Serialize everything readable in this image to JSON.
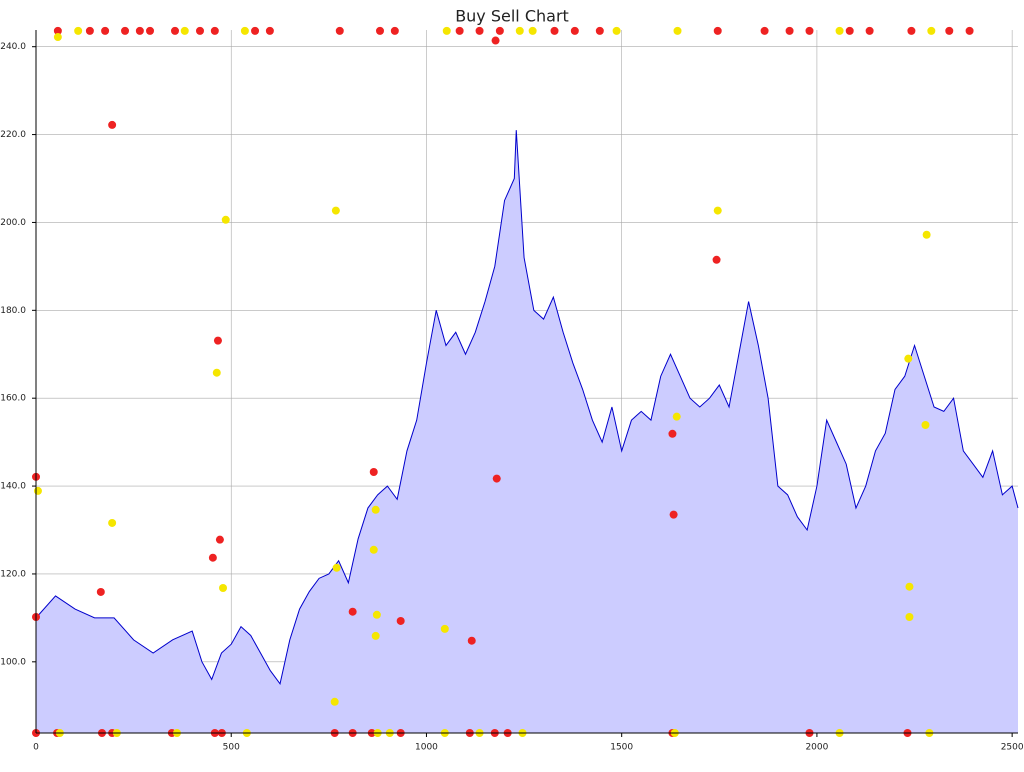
{
  "chart_data": {
    "type": "area",
    "title": "Buy Sell Chart",
    "xlim": [
      0,
      2515
    ],
    "ylim": [
      83.8,
      243.8
    ],
    "grid": true,
    "xticks": [
      0,
      500,
      1000,
      1500,
      2000,
      2500
    ],
    "yticks": [
      {
        "value": 100,
        "label": "100.0"
      },
      {
        "value": 120,
        "label": "120.0"
      },
      {
        "value": 140,
        "label": "140.0"
      },
      {
        "value": 160,
        "label": "160.0"
      },
      {
        "value": 180,
        "label": "180.0"
      },
      {
        "value": 200,
        "label": "200.0"
      },
      {
        "value": 220,
        "label": "220.0"
      },
      {
        "value": 240,
        "label": "240.0"
      }
    ],
    "series": [
      {
        "type": "area",
        "color": "#0000cc",
        "fill": "#ccccff",
        "x": [
          0,
          50,
          100,
          150,
          200,
          250,
          300,
          350,
          400,
          425,
          450,
          475,
          500,
          525,
          550,
          575,
          600,
          625,
          650,
          675,
          700,
          725,
          750,
          775,
          800,
          825,
          850,
          875,
          900,
          925,
          950,
          975,
          1000,
          1025,
          1050,
          1075,
          1100,
          1125,
          1150,
          1175,
          1200,
          1225,
          1230,
          1250,
          1275,
          1300,
          1325,
          1350,
          1375,
          1400,
          1425,
          1450,
          1475,
          1500,
          1525,
          1550,
          1575,
          1600,
          1625,
          1650,
          1675,
          1700,
          1725,
          1750,
          1775,
          1800,
          1825,
          1850,
          1875,
          1900,
          1925,
          1950,
          1975,
          2000,
          2025,
          2050,
          2075,
          2100,
          2125,
          2150,
          2175,
          2200,
          2225,
          2250,
          2275,
          2300,
          2325,
          2350,
          2375,
          2400,
          2425,
          2450,
          2475,
          2500,
          2515
        ],
        "values": [
          110,
          115,
          112,
          110,
          110,
          105,
          102,
          105,
          107,
          100,
          96,
          102,
          104,
          108,
          106,
          102,
          98,
          95,
          105,
          112,
          116,
          119,
          120,
          123,
          118,
          128,
          135,
          138,
          140,
          137,
          148,
          155,
          168,
          180,
          172,
          175,
          170,
          175,
          182,
          190,
          205,
          210,
          221,
          192,
          180,
          178,
          183,
          175,
          168,
          162,
          155,
          150,
          158,
          148,
          155,
          157,
          155,
          165,
          170,
          165,
          160,
          158,
          160,
          163,
          158,
          170,
          182,
          172,
          160,
          140,
          138,
          133,
          130,
          140,
          155,
          150,
          145,
          135,
          140,
          148,
          152,
          162,
          165,
          172,
          165,
          158,
          157,
          160,
          148,
          145,
          142,
          148,
          138,
          140,
          135
        ]
      },
      {
        "type": "scatter",
        "color": "#ee2222",
        "x": [
          0,
          0,
          195,
          166,
          466,
          471,
          453,
          865,
          811,
          934,
          1116,
          1180,
          1177,
          1630,
          1633,
          1743,
          56,
          138,
          177,
          228,
          266,
          292,
          356,
          420,
          458,
          561,
          599,
          778,
          881,
          919,
          1085,
          1136,
          1188,
          1328,
          1380,
          1444,
          1746,
          1866,
          1930,
          1981,
          2084,
          2135,
          2242,
          2339,
          2391,
          0,
          54,
          169,
          195,
          348,
          458,
          476,
          765,
          811,
          860,
          934,
          1111,
          1175,
          1208,
          1630,
          1981,
          2232
        ],
        "values": [
          142.1,
          110.2,
          222.2,
          115.9,
          173.1,
          127.8,
          123.7,
          143.2,
          111.4,
          109.3,
          104.8,
          141.7,
          241.4,
          151.9,
          133.5,
          191.5,
          243.6,
          243.6,
          243.6,
          243.6,
          243.6,
          243.6,
          243.6,
          243.6,
          243.6,
          243.6,
          243.6,
          243.6,
          243.6,
          243.6,
          243.6,
          243.6,
          243.6,
          243.6,
          243.6,
          243.6,
          243.6,
          243.6,
          243.6,
          243.6,
          243.6,
          243.6,
          243.6,
          243.6,
          243.6,
          83.8,
          83.8,
          83.8,
          83.8,
          83.8,
          83.8,
          83.8,
          83.8,
          83.8,
          83.8,
          83.8,
          83.8,
          83.8,
          83.8,
          83.8,
          83.8,
          83.8
        ]
      },
      {
        "type": "scatter",
        "color": "#f5e600",
        "x": [
          5,
          195,
          486,
          463,
          479,
          768,
          770,
          765,
          870,
          865,
          873,
          870,
          1047,
          1641,
          1746,
          2234,
          2237,
          2237,
          2278,
          2281,
          56,
          108,
          381,
          535,
          1052,
          1239,
          1272,
          1487,
          1643,
          2058,
          2293,
          61,
          207,
          361,
          540,
          875,
          906,
          1047,
          1136,
          1246,
          1636,
          2058,
          2288
        ],
        "values": [
          138.9,
          131.6,
          200.6,
          165.8,
          116.8,
          202.7,
          121.4,
          90.9,
          134.6,
          125.5,
          110.7,
          105.9,
          107.5,
          155.8,
          202.7,
          169.0,
          117.1,
          110.2,
          153.9,
          197.2,
          242.2,
          243.6,
          243.6,
          243.6,
          243.6,
          243.6,
          243.6,
          243.6,
          243.6,
          243.6,
          243.6,
          83.8,
          83.8,
          83.8,
          83.8,
          83.8,
          83.8,
          83.8,
          83.8,
          83.8,
          83.8,
          83.8,
          83.8
        ]
      }
    ]
  }
}
